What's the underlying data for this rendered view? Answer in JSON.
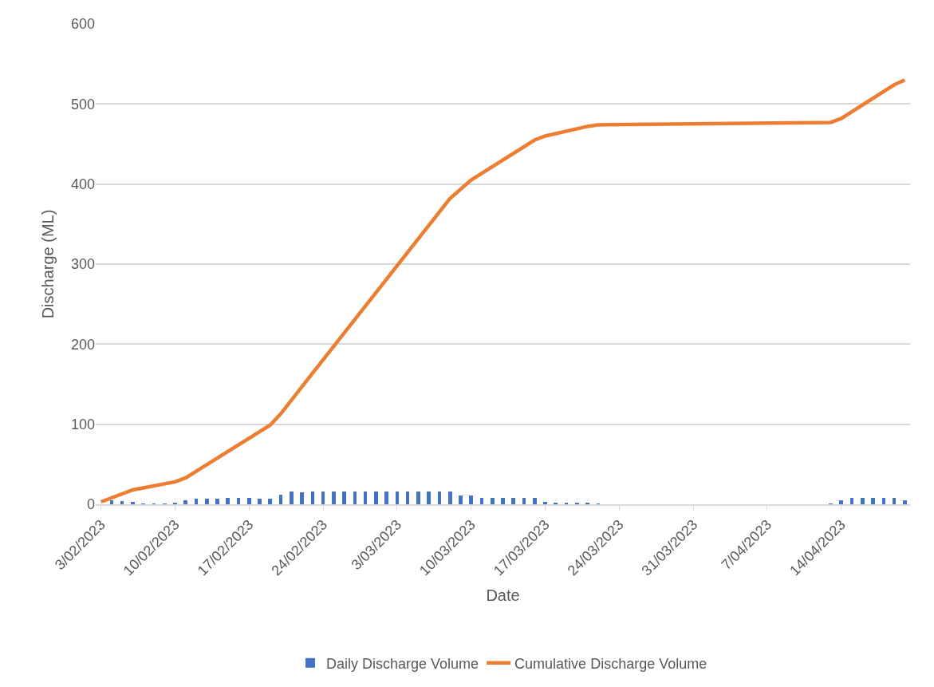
{
  "chart_data": {
    "type": "bar",
    "xlabel": "Date",
    "ylabel": "Discharge (ML)",
    "xlim": [
      "2023-02-02T12:00",
      "2023-04-20T12:00"
    ],
    "xticks": [
      {
        "value": "2023-02-03",
        "label": "3/02/2023"
      },
      {
        "value": "2023-02-10",
        "label": "10/02/2023"
      },
      {
        "value": "2023-02-17",
        "label": "17/02/2023"
      },
      {
        "value": "2023-02-24",
        "label": "24/02/2023"
      },
      {
        "value": "2023-03-03",
        "label": "3/03/2023"
      },
      {
        "value": "2023-03-10",
        "label": "10/03/2023"
      },
      {
        "value": "2023-03-17",
        "label": "17/03/2023"
      },
      {
        "value": "2023-03-24",
        "label": "24/03/2023"
      },
      {
        "value": "2023-03-31",
        "label": "31/03/2023"
      },
      {
        "value": "2023-04-07",
        "label": "7/04/2023"
      },
      {
        "value": "2023-04-14",
        "label": "14/04/2023"
      }
    ],
    "ylim": [
      0,
      600
    ],
    "yticks": [
      0,
      100,
      200,
      300,
      400,
      500,
      600
    ],
    "grid": "y",
    "legend": "bottom",
    "series": [
      {
        "name": "Daily Discharge Volume",
        "color": "#4472c4",
        "x": [
          "2023-02-04",
          "2023-02-05",
          "2023-02-06",
          "2023-02-07",
          "2023-02-08",
          "2023-02-09",
          "2023-02-10",
          "2023-02-11",
          "2023-02-12",
          "2023-02-13",
          "2023-02-14",
          "2023-02-15",
          "2023-02-16",
          "2023-02-17",
          "2023-02-18",
          "2023-02-19",
          "2023-02-20",
          "2023-02-21",
          "2023-02-22",
          "2023-02-23",
          "2023-02-24",
          "2023-02-25",
          "2023-02-26",
          "2023-02-27",
          "2023-02-28",
          "2023-03-01",
          "2023-03-02",
          "2023-03-03",
          "2023-03-04",
          "2023-03-05",
          "2023-03-06",
          "2023-03-07",
          "2023-03-08",
          "2023-03-09",
          "2023-03-10",
          "2023-03-11",
          "2023-03-12",
          "2023-03-13",
          "2023-03-14",
          "2023-03-15",
          "2023-03-16",
          "2023-03-17",
          "2023-03-18",
          "2023-03-19",
          "2023-03-20",
          "2023-03-21",
          "2023-03-22",
          "2023-04-13",
          "2023-04-14",
          "2023-04-15",
          "2023-04-16",
          "2023-04-17",
          "2023-04-18",
          "2023-04-19",
          "2023-04-20"
        ],
        "values": [
          5,
          4,
          3,
          1,
          1,
          1,
          2,
          5,
          7,
          7,
          7,
          8,
          8,
          8,
          7,
          7,
          12,
          16,
          15,
          16,
          16,
          16,
          16,
          16,
          16,
          16,
          16,
          16,
          16,
          16,
          16,
          16,
          16,
          11,
          11,
          8,
          8,
          8,
          8,
          8,
          8,
          3,
          2,
          2,
          2,
          2,
          1,
          1,
          5,
          8,
          8,
          8,
          8,
          8,
          5
        ]
      },
      {
        "name": "Cumulative Discharge Volume",
        "type": "line",
        "color": "#ed7d31",
        "x": [
          "2023-02-03",
          "2023-02-06",
          "2023-02-10",
          "2023-02-11",
          "2023-02-19",
          "2023-02-20",
          "2023-02-21",
          "2023-02-22",
          "2023-03-08",
          "2023-03-10",
          "2023-03-16",
          "2023-03-17",
          "2023-03-21",
          "2023-03-22",
          "2023-04-13",
          "2023-04-14",
          "2023-04-19",
          "2023-04-20"
        ],
        "values": [
          3,
          18,
          28,
          33,
          99,
          113,
          130,
          147,
          382,
          405,
          455,
          460,
          472,
          474,
          477,
          482,
          524,
          530
        ]
      }
    ]
  }
}
